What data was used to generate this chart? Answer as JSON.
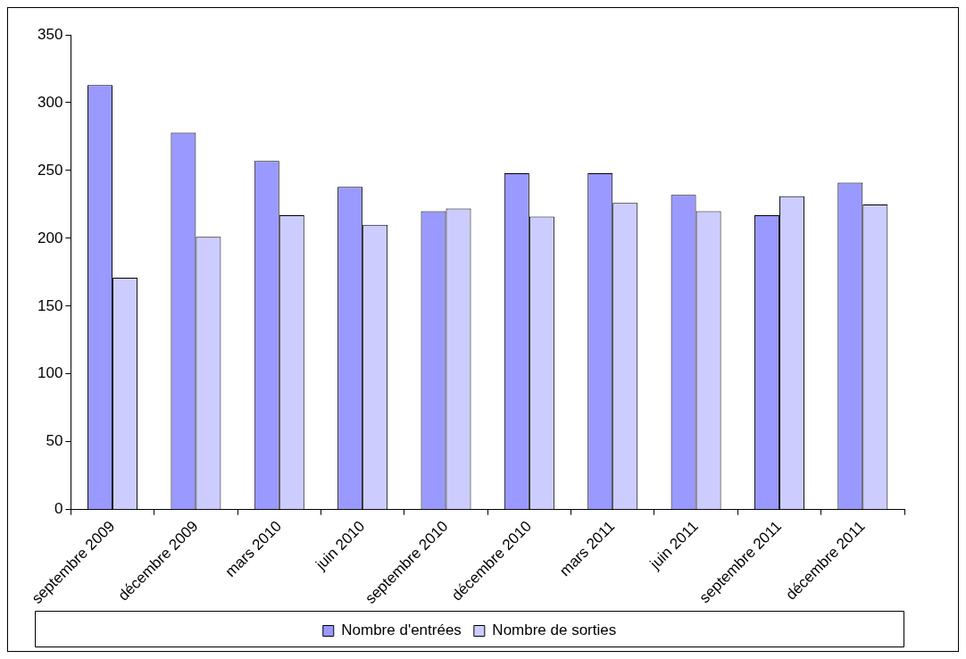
{
  "chart_data": {
    "type": "bar",
    "categories": [
      "septembre 2009",
      "décembre 2009",
      "mars 2010",
      "juin 2010",
      "septembre 2010",
      "décembre 2010",
      "mars 2011",
      "juin 2011",
      "septembre 2011",
      "décembre 2011"
    ],
    "series": [
      {
        "name": "Nombre d'entrées",
        "color": "#9999ff",
        "values": [
          313,
          278,
          257,
          238,
          220,
          248,
          248,
          232,
          217,
          241
        ]
      },
      {
        "name": "Nombre de sorties",
        "color": "#ccccff",
        "values": [
          171,
          201,
          217,
          210,
          222,
          216,
          226,
          220,
          231,
          225
        ]
      }
    ],
    "ylim": [
      0,
      350
    ],
    "yticks": [
      0,
      50,
      100,
      150,
      200,
      250,
      300,
      350
    ],
    "grid": false,
    "legend": "bottom"
  }
}
